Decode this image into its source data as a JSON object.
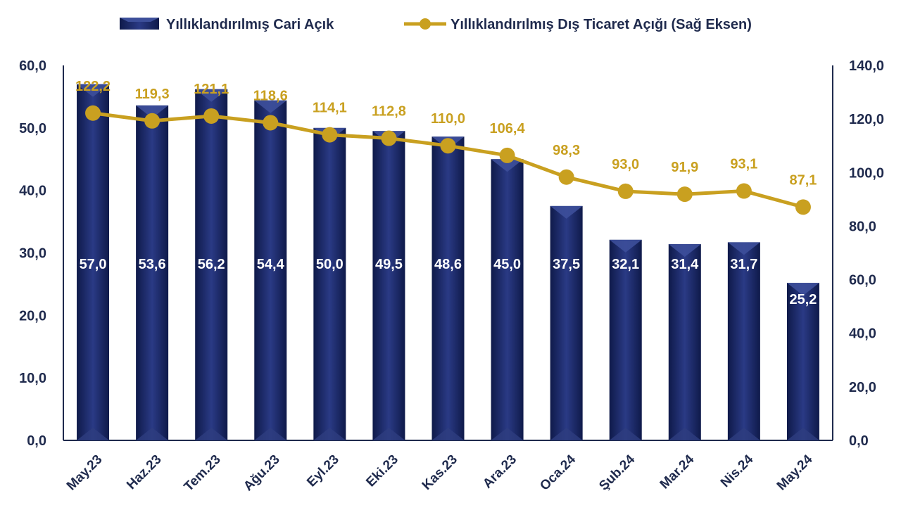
{
  "chart_data": {
    "type": "bar",
    "categories": [
      "May.23",
      "Haz.23",
      "Tem.23",
      "Ağu.23",
      "Eyl.23",
      "Eki.23",
      "Kas.23",
      "Ara.23",
      "Oca.24",
      "Şub.24",
      "Mar.24",
      "Nis.24",
      "May.24"
    ],
    "series": [
      {
        "name": "Yıllıklandırılmış Cari Açık",
        "type": "bar",
        "axis": "left",
        "color": "#1c2a6b",
        "values": [
          57.0,
          53.6,
          56.2,
          54.4,
          50.0,
          49.5,
          48.6,
          45.0,
          37.5,
          32.1,
          31.4,
          31.7,
          25.2
        ],
        "labels": [
          "57,0",
          "53,6",
          "56,2",
          "54,4",
          "50,0",
          "49,5",
          "48,6",
          "45,0",
          "37,5",
          "32,1",
          "31,4",
          "31,7",
          "25,2"
        ]
      },
      {
        "name": "Yıllıklandırılmış Dış Ticaret Açığı (Sağ Eksen)",
        "type": "line",
        "axis": "right",
        "color": "#c9a020",
        "values": [
          122.2,
          119.3,
          121.1,
          118.6,
          114.1,
          112.8,
          110.0,
          106.4,
          98.3,
          93.0,
          91.9,
          93.1,
          87.1
        ],
        "labels": [
          "122,2",
          "119,3",
          "121,1",
          "118,6",
          "114,1",
          "112,8",
          "110,0",
          "106,4",
          "98,3",
          "93,0",
          "91,9",
          "93,1",
          "87,1"
        ]
      }
    ],
    "ylim_left": [
      0,
      60
    ],
    "ylim_right": [
      0,
      140
    ],
    "yticks_left": [
      "0,0",
      "10,0",
      "20,0",
      "30,0",
      "40,0",
      "50,0",
      "60,0"
    ],
    "yticks_right": [
      "0,0",
      "20,0",
      "40,0",
      "60,0",
      "80,0",
      "100,0",
      "120,0",
      "140,0"
    ],
    "grid": false,
    "legend_position": "top"
  }
}
